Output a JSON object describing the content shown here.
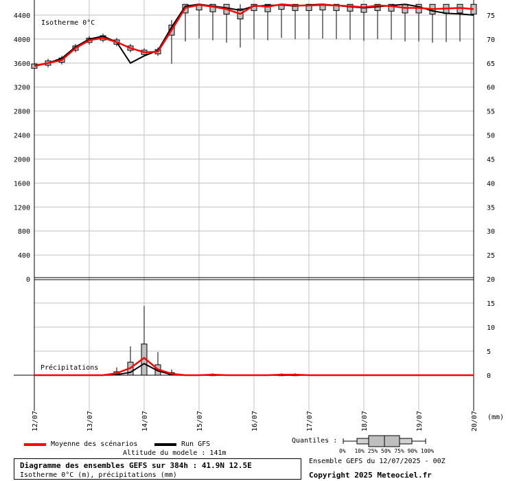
{
  "chart_data": [
    {
      "type": "line",
      "panel": "isotherme",
      "label": "Isotherme 0°C",
      "left_axis": {
        "ticks": [
          0,
          400,
          800,
          1200,
          1600,
          2000,
          2400,
          2800,
          3200,
          3600,
          4000,
          4400
        ],
        "ylim": [
          0,
          4580
        ]
      },
      "right_axis": {
        "ticks": [
          20,
          25,
          30,
          35,
          40,
          45,
          50,
          55,
          60,
          65,
          70,
          75
        ]
      },
      "x_ticks": [
        "12/07",
        "13/07",
        "14/07",
        "15/07",
        "16/07",
        "17/07",
        "18/07",
        "19/07",
        "20/07"
      ],
      "x_hours": [
        0,
        6,
        12,
        18,
        24,
        30,
        36,
        42,
        48,
        54,
        60,
        66,
        72,
        78,
        84,
        90,
        96,
        102,
        108,
        114,
        120,
        126,
        132,
        138,
        144,
        150,
        156,
        162,
        168,
        174,
        180,
        186,
        192
      ],
      "series": [
        {
          "name": "Moyenne des scénarios",
          "color": "#ff0000",
          "values": [
            3550,
            3600,
            3650,
            3850,
            3980,
            4020,
            3950,
            3850,
            3780,
            3790,
            4150,
            4520,
            4570,
            4540,
            4500,
            4420,
            4560,
            4540,
            4580,
            4560,
            4560,
            4570,
            4560,
            4550,
            4530,
            4560,
            4550,
            4520,
            4520,
            4500,
            4510,
            4520,
            4500
          ]
        },
        {
          "name": "Run GFS",
          "color": "#000000",
          "values": [
            3560,
            3600,
            3680,
            3870,
            4000,
            4050,
            3950,
            3600,
            3720,
            3810,
            4200,
            4550,
            4580,
            4550,
            4520,
            4480,
            4550,
            4560,
            4570,
            4550,
            4570,
            4580,
            4560,
            4540,
            4520,
            4540,
            4560,
            4580,
            4540,
            4470,
            4430,
            4420,
            4400
          ]
        }
      ]
    },
    {
      "type": "line",
      "panel": "precipitations",
      "label": "Précipitations",
      "right_axis": {
        "ticks": [
          0,
          5,
          10,
          15,
          20
        ],
        "ylim": [
          0,
          20
        ],
        "unit": "(mm)"
      },
      "series": [
        {
          "name": "Moyenne des scénarios",
          "color": "#ff0000",
          "values": [
            0,
            0,
            0,
            0,
            0,
            0,
            0.4,
            1.5,
            3.6,
            1.2,
            0.3,
            0,
            0,
            0.1,
            0,
            0,
            0,
            0,
            0.1,
            0.1,
            0,
            0,
            0,
            0,
            0,
            0,
            0,
            0,
            0,
            0,
            0,
            0,
            0
          ]
        },
        {
          "name": "Run GFS",
          "color": "#000000",
          "values": [
            0,
            0,
            0,
            0,
            0,
            0,
            0.1,
            0.6,
            2.4,
            0.9,
            0.1,
            0,
            0,
            0,
            0,
            0,
            0,
            0,
            0,
            0,
            0,
            0,
            0,
            0,
            0,
            0,
            0,
            0,
            0,
            0,
            0,
            0,
            0
          ]
        }
      ]
    }
  ],
  "legend": {
    "mean_label": "Moyenne des scénarios",
    "run_label": "Run GFS",
    "quantiles_label": "Quantiles :",
    "quantile_ticks": [
      "0%",
      "10%",
      "25%",
      "50%",
      "75%",
      "90%",
      "100%"
    ],
    "altitude": "Altitude du modele : 141m",
    "ensemble": "Ensemble GEFS du 12/07/2025 - 00Z",
    "copyright": "Copyright 2025 Meteociel.fr",
    "title": "Diagramme des ensembles GEFS sur 384h : 41.9N 12.5E",
    "subtitle": "Isotherme 0°C (m), précipitations (mm)"
  },
  "colors": {
    "mean": "#ff0000",
    "run": "#000000",
    "box": "#bfbfbf",
    "grid": "#c0c0c0"
  }
}
